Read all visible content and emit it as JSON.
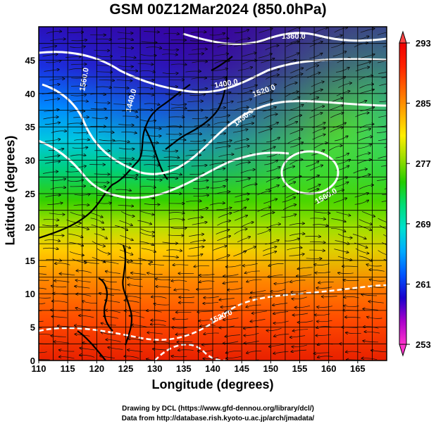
{
  "title": "GSM 00Z12Mar2024 (850.0hPa)",
  "xlabel": "Longitude (degrees)",
  "ylabel": "Latitude  (degrees)",
  "x_ticks": [
    "110",
    "115",
    "120",
    "125",
    "130",
    "135",
    "140",
    "145",
    "150",
    "155",
    "160",
    "165"
  ],
  "y_ticks": [
    "0",
    "5",
    "10",
    "15",
    "20",
    "25",
    "30",
    "35",
    "40",
    "45"
  ],
  "colorbar_ticks": [
    "253",
    "261",
    "269",
    "277",
    "285",
    "293"
  ],
  "contour_labels": [
    "1360.0",
    "1400.0",
    "1440.0",
    "1520.0",
    "1480.0",
    "1560.0",
    "1520.0",
    "1560.0"
  ],
  "credits": {
    "line1": "Drawing by DCL (https://www.gfd-dennou.org/library/dcl/)",
    "line2": "Data from http://database.rish.kyoto-u.ac.jp/arch/jmadata/"
  },
  "chart_data": {
    "type": "heatmap",
    "variable": "temperature with geopotential height contours and wind streamlines",
    "xlim": [
      110,
      170
    ],
    "ylim": [
      0,
      50
    ],
    "colorbar_range": [
      253,
      293
    ],
    "colorbar_ticks": [
      253,
      261,
      269,
      277,
      285,
      293
    ],
    "colormap": [
      "#ff33cc",
      "#aa00cc",
      "#1a00cc",
      "#0055ff",
      "#00aaff",
      "#00e0d0",
      "#00dd77",
      "#22cc00",
      "#99dd00",
      "#ffee00",
      "#ffaa00",
      "#ff6600",
      "#ff2200",
      "#ee0000"
    ],
    "contours": [
      {
        "value": 1360.0,
        "style": "solid"
      },
      {
        "value": 1400.0,
        "style": "solid"
      },
      {
        "value": 1440.0,
        "style": "solid"
      },
      {
        "value": 1480.0,
        "style": "solid"
      },
      {
        "value": 1520.0,
        "style": "dashed"
      },
      {
        "value": 1560.0,
        "style": "dashed"
      }
    ],
    "grid": true,
    "colorbar_placement": "right"
  }
}
